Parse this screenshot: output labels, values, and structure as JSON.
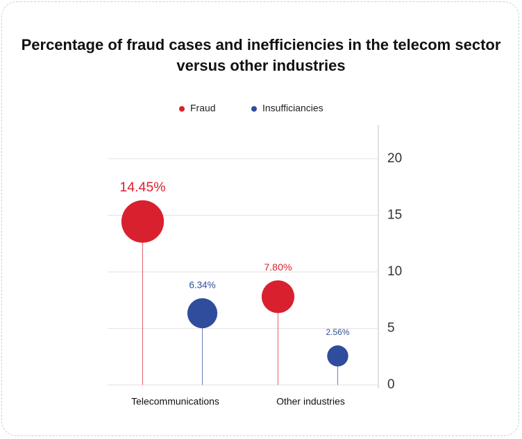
{
  "chart_data": {
    "type": "lollipop",
    "title": "Percentage of fraud cases and inefficiencies in the telecom sector versus other industries",
    "categories": [
      "Telecommunications",
      "Other industries"
    ],
    "series": [
      {
        "name": "Fraud",
        "color": "#d9202e",
        "values": [
          14.45,
          7.8
        ],
        "value_labels": [
          "14.45%",
          "7.80%"
        ]
      },
      {
        "name": "Insufficiancies",
        "color": "#2f4d9c",
        "values": [
          6.34,
          2.56
        ],
        "value_labels": [
          "6.34%",
          "2.56%"
        ]
      }
    ],
    "ylim": [
      0,
      23
    ],
    "yticks": [
      0,
      5,
      10,
      15,
      20
    ],
    "grid": true,
    "legend": "top"
  }
}
